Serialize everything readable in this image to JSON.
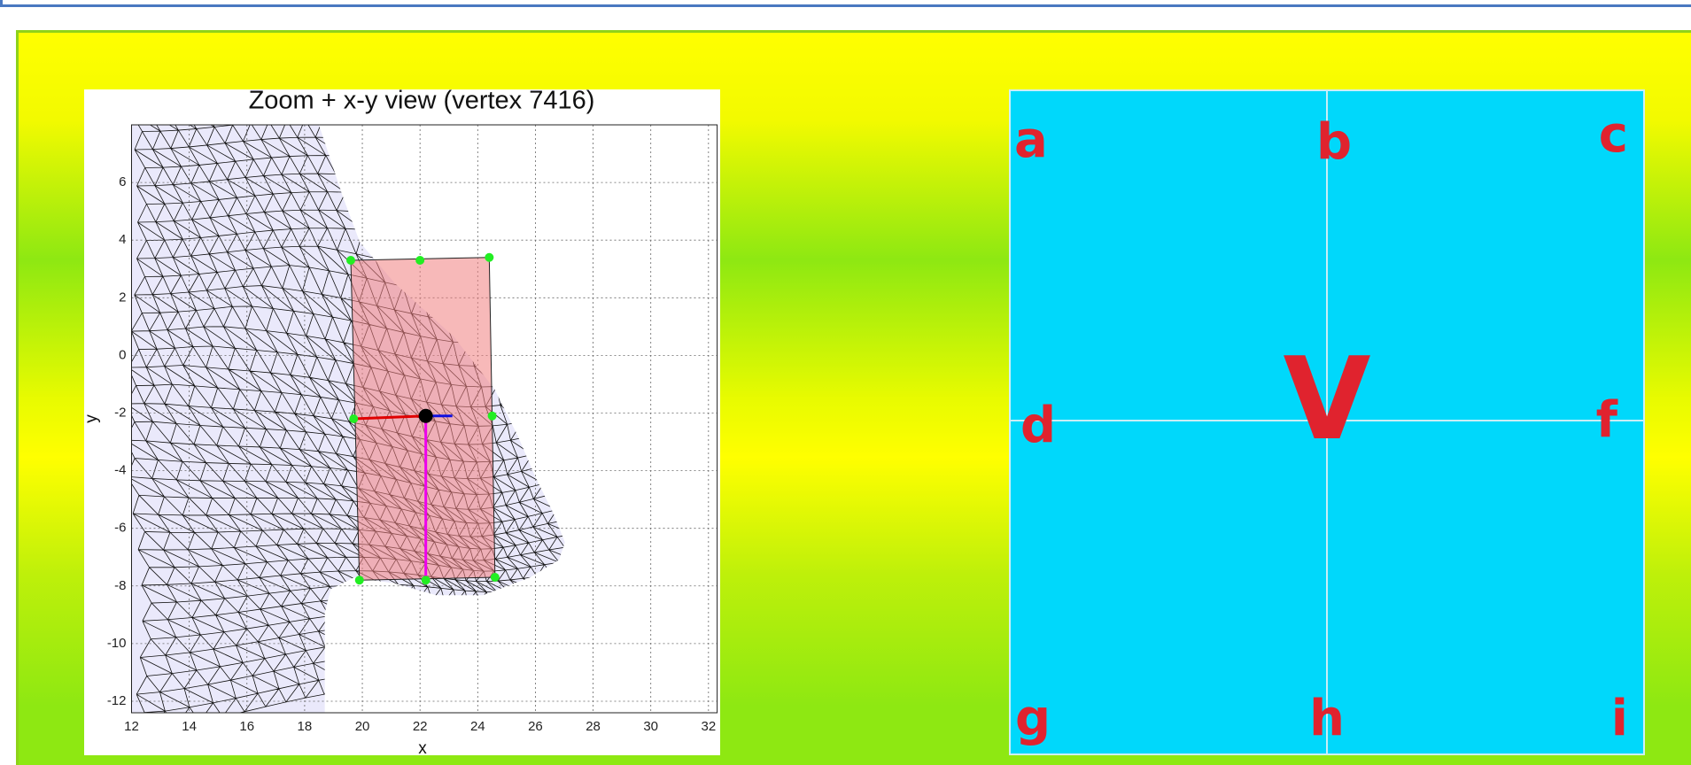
{
  "chart_data": {
    "type": "mesh-view",
    "title": "Zoom + x-y view (vertex 7416)",
    "xlabel": "x",
    "ylabel": "y",
    "xlim": [
      12,
      32.3
    ],
    "ylim": [
      -12.4,
      8
    ],
    "xticks": [
      12,
      14,
      16,
      18,
      20,
      22,
      24,
      26,
      28,
      30,
      32
    ],
    "yticks": [
      -12,
      -10,
      -8,
      -6,
      -4,
      -2,
      0,
      2,
      4,
      6
    ],
    "grid": true,
    "region": {
      "color": "#f08080",
      "x": [
        19.6,
        24.4,
        24.6,
        19.9
      ],
      "y": [
        3.3,
        3.4,
        -7.7,
        -7.8
      ]
    },
    "markers": {
      "color": "#22ee22",
      "x": [
        19.6,
        22,
        24.4,
        19.7,
        24.5,
        19.9,
        22.2,
        24.6
      ],
      "y": [
        3.3,
        3.3,
        3.4,
        -2.2,
        -2.1,
        -7.8,
        -7.8,
        -7.7
      ]
    },
    "vertex": {
      "color": "#000000",
      "x": 22.2,
      "y": -2.1
    }
  },
  "panel": {
    "labels": [
      "a",
      "b",
      "c",
      "d",
      "f",
      "g",
      "h",
      "i"
    ],
    "center": "V"
  }
}
